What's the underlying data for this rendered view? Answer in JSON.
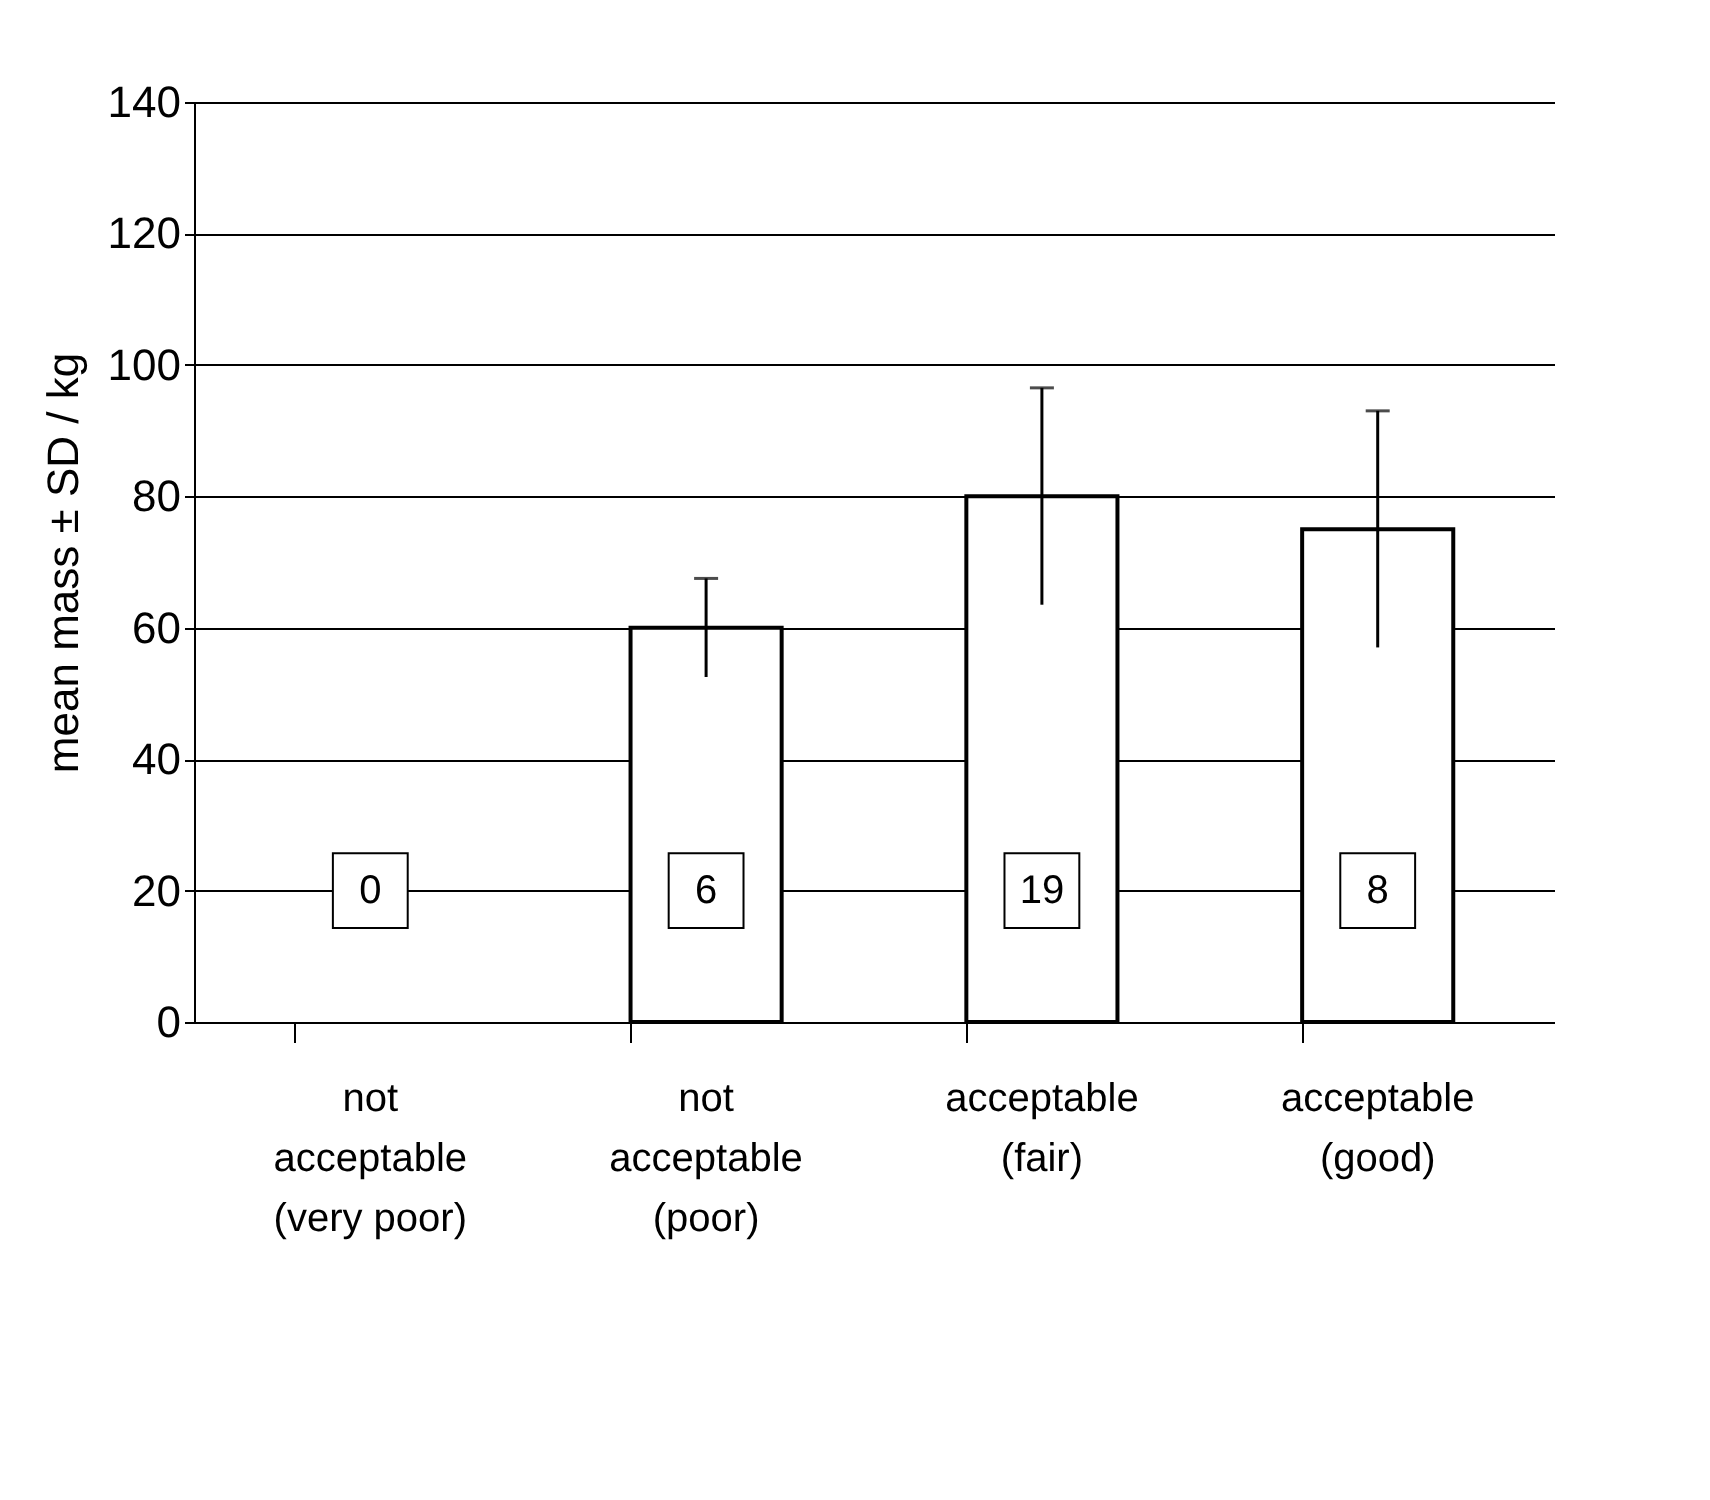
{
  "chart_data": {
    "type": "bar",
    "ylabel": "mean mass ± SD / kg",
    "categories": [
      "not\nacceptable\n(very poor)",
      "not\nacceptable\n(poor)",
      "acceptable\n(fair)",
      "acceptable\n(good)"
    ],
    "values": [
      null,
      60,
      80,
      75
    ],
    "errors": [
      null,
      7.5,
      16.5,
      18
    ],
    "color": "#ffffff",
    "ylim": [
      0,
      140
    ],
    "yticks": [
      0,
      20,
      40,
      60,
      80,
      100,
      120,
      140
    ],
    "grid": "y",
    "annotations": [
      "0",
      "6",
      "19",
      "8"
    ]
  }
}
